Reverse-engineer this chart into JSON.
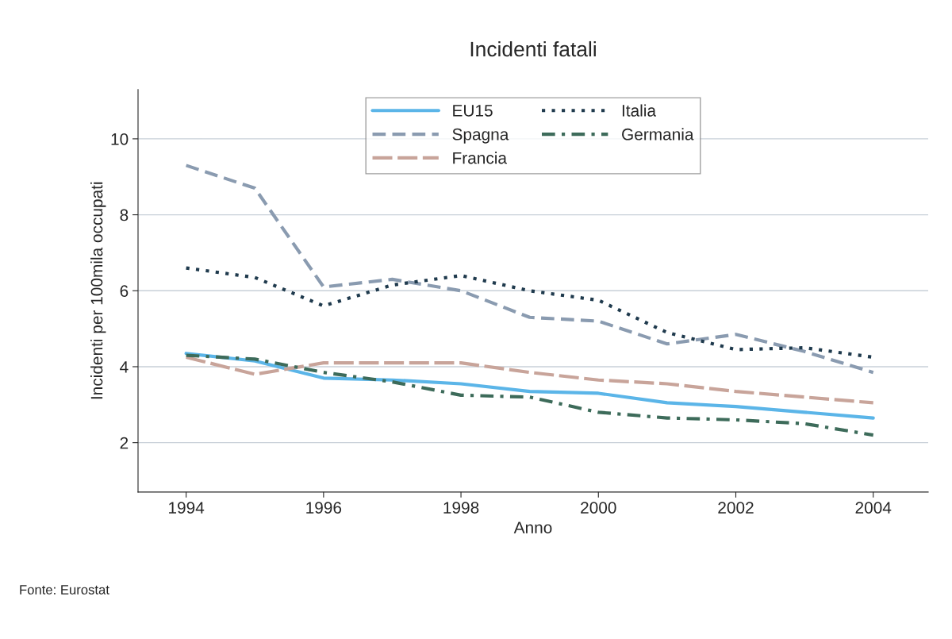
{
  "chart_data": {
    "type": "line",
    "title": "Incidenti fatali",
    "xlabel": "Anno",
    "ylabel": "Incidenti per 100mila occupati",
    "x": [
      1994,
      1995,
      1996,
      1997,
      1998,
      1999,
      2000,
      2001,
      2002,
      2003,
      2004
    ],
    "series": [
      {
        "name": "EU15",
        "color": "#5bb5e8",
        "line_style": "solid",
        "values": [
          4.35,
          4.15,
          3.7,
          3.65,
          3.55,
          3.35,
          3.3,
          3.05,
          2.95,
          2.8,
          2.65
        ]
      },
      {
        "name": "Spagna",
        "color": "#8a9bb0",
        "line_style": "dashed",
        "values": [
          9.3,
          8.7,
          6.1,
          6.3,
          6.0,
          5.3,
          5.2,
          4.6,
          4.85,
          4.4,
          3.85
        ]
      },
      {
        "name": "Francia",
        "color": "#c8a49a",
        "line_style": "longdash",
        "values": [
          4.25,
          3.8,
          4.1,
          4.1,
          4.1,
          3.85,
          3.65,
          3.55,
          3.35,
          3.2,
          3.05
        ]
      },
      {
        "name": "Italia",
        "color": "#1f3a4d",
        "line_style": "dotted",
        "values": [
          6.6,
          6.35,
          5.6,
          6.15,
          6.4,
          6.0,
          5.75,
          4.9,
          4.45,
          4.5,
          4.25
        ]
      },
      {
        "name": "Germania",
        "color": "#3d6b5a",
        "line_style": "dashdot",
        "values": [
          4.3,
          4.2,
          3.85,
          3.6,
          3.25,
          3.2,
          2.8,
          2.65,
          2.6,
          2.5,
          2.2
        ]
      }
    ],
    "xlim": [
      1993.3,
      2004.8
    ],
    "xticks": [
      1994,
      1996,
      1998,
      2000,
      2002,
      2004
    ],
    "ylim": [
      0.7,
      11.3
    ],
    "yticks": [
      2,
      4,
      6,
      8,
      10
    ],
    "grid": "y",
    "legend": "top",
    "annotations": [
      "Fonte: Eurostat"
    ]
  }
}
